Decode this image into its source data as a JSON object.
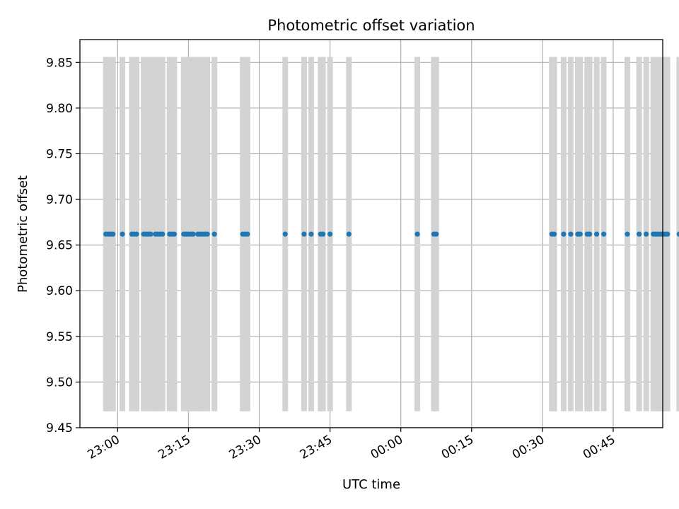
{
  "chart_data": {
    "type": "scatter",
    "title": "Photometric offset variation",
    "xlabel": "UTC time",
    "ylabel": "Photometric offset",
    "ylim": [
      9.45,
      9.875
    ],
    "xlim": [
      "22:52",
      "00:55:30"
    ],
    "grid": true,
    "x_ticks": [
      "23:00",
      "23:15",
      "23:30",
      "23:45",
      "00:00",
      "00:15",
      "00:30",
      "00:45"
    ],
    "y_ticks": [
      "9.45",
      "9.50",
      "9.55",
      "9.60",
      "9.65",
      "9.70",
      "9.75",
      "9.80",
      "9.85"
    ],
    "colors": {
      "points": "#1f77b4",
      "errorbars": "#d3d3d3",
      "grid": "#b0b0b0"
    },
    "series": [
      {
        "x": [
          "22:57:30",
          "22:58",
          "22:58:30",
          "22:59",
          "23:01",
          "23:03",
          "23:03:30",
          "23:04",
          "23:05:30",
          "23:06",
          "23:06:30",
          "23:07",
          "23:08",
          "23:08:30",
          "23:09",
          "23:09:30",
          "23:11",
          "23:11:30",
          "23:12",
          "23:14",
          "23:14:30",
          "23:15",
          "23:15:30",
          "23:16",
          "23:17",
          "23:17:30",
          "23:18",
          "23:18:30",
          "23:19",
          "23:20:30",
          "23:26:30",
          "23:27",
          "23:27:30",
          "23:35:30",
          "23:39:30",
          "23:41",
          "23:43",
          "23:43:30",
          "23:45",
          "23:49",
          "00:03:30",
          "00:07",
          "00:07:30",
          "00:32",
          "00:32:30",
          "00:34:30",
          "00:36",
          "00:37:30",
          "00:38",
          "00:39:30",
          "00:40",
          "00:41:30",
          "00:43",
          "00:48",
          "00:50:30",
          "00:52",
          "00:53:30",
          "00:54",
          "00:54:30",
          "00:55",
          "00:55:30",
          "00:56",
          "00:56:30",
          "00:59"
        ],
        "y": [
          9.662,
          9.662,
          9.662,
          9.662,
          9.662,
          9.662,
          9.662,
          9.662,
          9.662,
          9.662,
          9.662,
          9.662,
          9.662,
          9.662,
          9.662,
          9.662,
          9.662,
          9.662,
          9.662,
          9.662,
          9.662,
          9.662,
          9.662,
          9.662,
          9.662,
          9.662,
          9.662,
          9.662,
          9.662,
          9.662,
          9.662,
          9.662,
          9.662,
          9.662,
          9.662,
          9.662,
          9.662,
          9.662,
          9.662,
          9.662,
          9.662,
          9.662,
          9.662,
          9.662,
          9.662,
          9.662,
          9.662,
          9.662,
          9.662,
          9.662,
          9.662,
          9.662,
          9.662,
          9.662,
          9.662,
          9.662,
          9.662,
          9.662,
          9.662,
          9.662,
          9.662,
          9.662,
          9.662,
          9.662
        ],
        "error_low": 9.468,
        "error_high": 9.856
      }
    ]
  }
}
